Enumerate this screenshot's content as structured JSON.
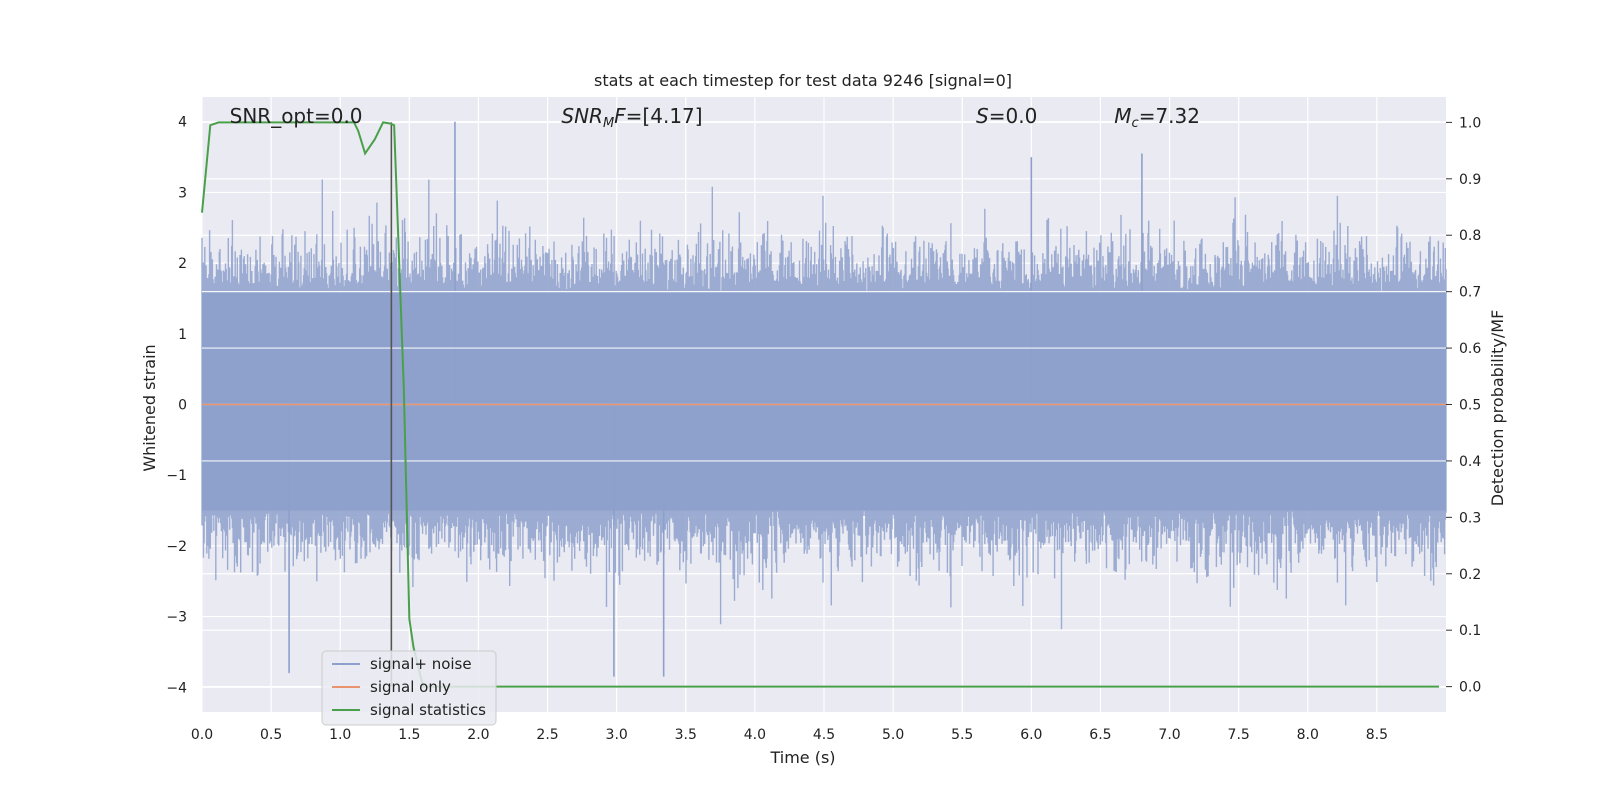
{
  "chart_data": {
    "type": "line",
    "title": "stats at each timestep for test data 9246 [signal=0]",
    "xlabel": "Time (s)",
    "ylabel": "Whitened strain",
    "ylabel_right": "Detection probability/MF",
    "xlim": [
      0.0,
      9.0
    ],
    "ylim": [
      -4.35,
      4.35
    ],
    "ylim_right": [
      -0.045,
      1.045
    ],
    "x_ticks": [
      "0.0",
      "0.5",
      "1.0",
      "1.5",
      "2.0",
      "2.5",
      "3.0",
      "3.5",
      "4.0",
      "4.5",
      "5.0",
      "5.5",
      "6.0",
      "6.5",
      "7.0",
      "7.5",
      "8.0",
      "8.5"
    ],
    "y_ticks": [
      "4",
      "3",
      "2",
      "1",
      "0",
      "−1",
      "−2",
      "−3",
      "−4"
    ],
    "y_right_ticks": [
      "1.0",
      "0.9",
      "0.8",
      "0.7",
      "0.6",
      "0.5",
      "0.4",
      "0.3",
      "0.2",
      "0.1",
      "0.0"
    ],
    "grid": true,
    "legend_placement": "lower-left",
    "series": [
      {
        "name": "signal+ noise",
        "color": "#8da0cb",
        "axis": "left",
        "description_values": {
          "typical_range": [
            -2.6,
            2.7
          ],
          "peaks": [
            [
              1.83,
              4.0
            ],
            [
              0.63,
              -3.8
            ],
            [
              2.98,
              -3.85
            ],
            [
              3.34,
              -3.85
            ],
            [
              6.0,
              3.5
            ],
            [
              6.8,
              3.55
            ]
          ],
          "dense_band": [
            -1.5,
            1.6
          ]
        }
      },
      {
        "name": "signal only",
        "color": "#e8956f",
        "axis": "left",
        "x": [
          0.0,
          9.0
        ],
        "y": [
          0.0,
          0.0
        ]
      },
      {
        "name": "signal statistics",
        "color": "#4aa04a",
        "axis": "right",
        "x": [
          0.0,
          0.06,
          0.12,
          0.3,
          0.6,
          0.9,
          1.1,
          1.13,
          1.18,
          1.25,
          1.31,
          1.36,
          1.39,
          1.46,
          1.5,
          1.53,
          1.6,
          2.0,
          3.0,
          4.0,
          5.0,
          6.0,
          7.0,
          8.0,
          8.95
        ],
        "y": [
          0.84,
          0.995,
          1.0,
          1.0,
          1.0,
          1.0,
          1.0,
          0.985,
          0.945,
          0.97,
          1.0,
          0.998,
          0.995,
          0.53,
          0.12,
          0.07,
          0.0,
          0.0,
          0.0,
          0.0,
          0.0,
          0.0,
          0.0,
          0.0,
          0.0
        ]
      }
    ],
    "vertical_marker": {
      "x": 1.37,
      "color": "#555555"
    },
    "annotations": [
      {
        "text": "SNR_opt=0.0",
        "x": 0.2
      },
      {
        "text": "SNR_M F=[4.17]",
        "main": "SNR",
        "sub": "M",
        "rest": "F=[4.17]",
        "x": 2.6
      },
      {
        "text": "S=0.0",
        "main": "S",
        "rest": "=0.0",
        "x": 5.6
      },
      {
        "text": "M_c=7.32",
        "main": "M",
        "sub": "c",
        "rest": "=7.32",
        "x": 6.6
      }
    ],
    "legend": [
      "signal+ noise",
      "signal only",
      "signal statistics"
    ]
  }
}
